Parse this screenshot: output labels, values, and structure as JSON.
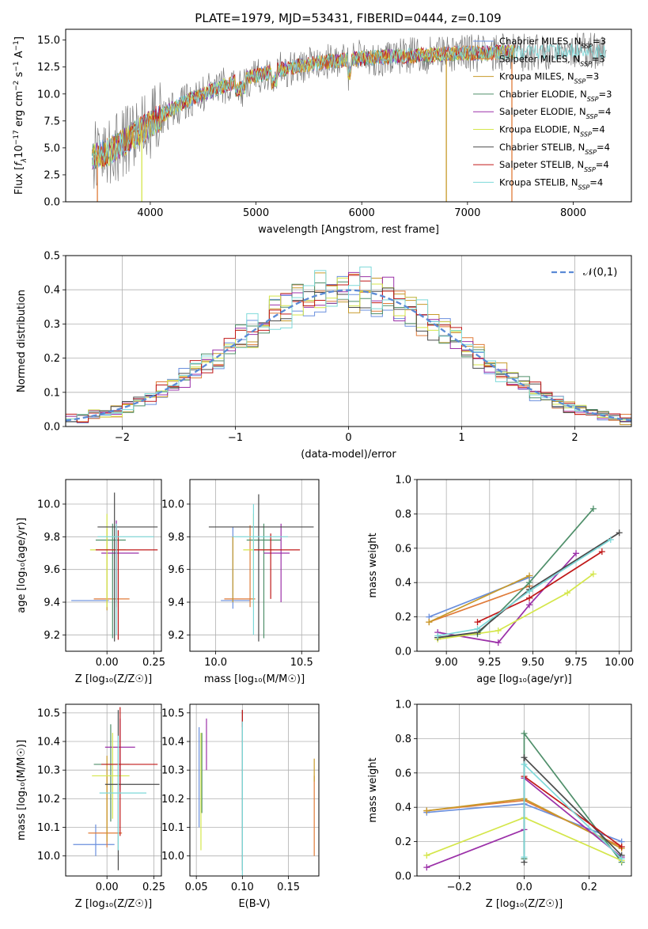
{
  "title": "PLATE=1979, MJD=53431, FIBERID=0444, z=0.109",
  "models": [
    {
      "name": "Chabrier MILES",
      "nssp": "3",
      "color": "#6a8fdd"
    },
    {
      "name": "Salpeter MILES",
      "nssp": "3",
      "color": "#e07b39"
    },
    {
      "name": "Kroupa MILES",
      "nssp": "3",
      "color": "#c89a2a"
    },
    {
      "name": "Chabrier ELODIE",
      "nssp": "3",
      "color": "#4f8f6a"
    },
    {
      "name": "Salpeter ELODIE",
      "nssp": "4",
      "color": "#9b30a8"
    },
    {
      "name": "Kroupa ELODIE",
      "nssp": "4",
      "color": "#d4e64a"
    },
    {
      "name": "Chabrier STELIB",
      "nssp": "4",
      "color": "#4a4a4a"
    },
    {
      "name": "Salpeter STELIB",
      "nssp": "4",
      "color": "#c01818"
    },
    {
      "name": "Kroupa STELIB",
      "nssp": "4",
      "color": "#7dd9d9"
    }
  ],
  "chart_data": [
    {
      "id": "spectrum",
      "type": "line",
      "xlabel": "wavelength [Angstrom, rest frame]",
      "ylabel_parts": [
        "Flux [",
        "f",
        "λ",
        "10",
        "−17",
        " erg cm",
        "−2",
        " s",
        "−1",
        " A",
        "−1",
        "]"
      ],
      "xlim": [
        3200,
        8550
      ],
      "ylim": [
        0,
        16
      ],
      "xticks": [
        4000,
        5000,
        6000,
        7000,
        8000
      ],
      "yticks": [
        "0.0",
        "2.5",
        "5.0",
        "7.5",
        "10.0",
        "12.5",
        "15.0"
      ],
      "ytick_values": [
        0,
        2.5,
        5,
        7.5,
        10,
        12.5,
        15
      ],
      "continuum_x": [
        3450,
        3600,
        3800,
        4000,
        4200,
        4400,
        4600,
        4800,
        5000,
        5200,
        5400,
        5600,
        5800,
        6000,
        6200,
        6400,
        6600,
        6800,
        7000,
        7200,
        7400,
        7600,
        7800,
        8000,
        8200,
        8320
      ],
      "continuum_y": [
        4.2,
        4.6,
        5.8,
        7.2,
        8.6,
        9.6,
        10.4,
        11.1,
        11.7,
        12.2,
        12.6,
        12.9,
        13.1,
        13.3,
        13.4,
        13.5,
        13.6,
        13.7,
        13.8,
        13.8,
        13.9,
        13.8,
        13.9,
        14.0,
        13.9,
        13.8
      ],
      "data_gaps_x": [
        3500,
        3920,
        6800,
        7420
      ],
      "grid": false,
      "legend_position": "upper right"
    },
    {
      "id": "residuals",
      "type": "step",
      "xlabel": "(data-model)/error",
      "ylabel": "Normed distribution",
      "xlim": [
        -2.5,
        2.5
      ],
      "ylim": [
        0,
        0.5
      ],
      "xticks": [
        "−2",
        "−1",
        "0",
        "1",
        "2"
      ],
      "xtick_values": [
        -2,
        -1,
        0,
        1,
        2
      ],
      "yticks": [
        "0.0",
        "0.1",
        "0.2",
        "0.3",
        "0.4",
        "0.5"
      ],
      "ytick_values": [
        0,
        0.1,
        0.2,
        0.3,
        0.4,
        0.5
      ],
      "reference_label": "𝒩(0,1)",
      "reference_color": "#5b8ad6",
      "grid": true,
      "legend_position": "upper right"
    },
    {
      "id": "age_vs_Z",
      "type": "errorbar",
      "xlabel": "Z [log₁₀(Z/Z☉)]",
      "ylabel": "age  [log₁₀(age/yr)]",
      "xlim": [
        -0.22,
        0.29
      ],
      "ylim": [
        9.1,
        10.15
      ],
      "xticks": [
        "0.00",
        "0.25"
      ],
      "xtick_values": [
        0,
        0.25
      ],
      "yticks": [
        "9.2",
        "9.4",
        "9.6",
        "9.8",
        "10.0"
      ],
      "ytick_values": [
        9.2,
        9.4,
        9.6,
        9.8,
        10.0
      ],
      "grid": true,
      "points": [
        {
          "x": 0.0,
          "xerr": [
            0.17,
            0.01
          ],
          "y": 9.41,
          "yerr": [
            0.0,
            0.0
          ]
        },
        {
          "x": 0.02,
          "xerr": [
            0.12,
            0.09
          ],
          "y": 9.42,
          "yerr": [
            0.05,
            0.5
          ]
        },
        {
          "x": 0.0,
          "xerr": [
            0.12,
            0.11
          ],
          "y": 9.78,
          "yerr": [
            0.4,
            0.1
          ]
        },
        {
          "x": 0.03,
          "xerr": [
            0.1,
            0.13
          ],
          "y": 9.7,
          "yerr": [
            0.55,
            0.15
          ]
        },
        {
          "x": 0.02,
          "xerr": [
            0.1,
            0.12
          ],
          "y": 9.72,
          "yerr": [
            0.3,
            0.2
          ]
        },
        {
          "x": 0.04,
          "xerr": [
            0.08,
            0.23
          ],
          "y": 9.86,
          "yerr": [
            0.7,
            0.2
          ]
        },
        {
          "x": 0.06,
          "xerr": [
            0.1,
            0.23
          ],
          "y": 9.72,
          "yerr": [
            0.5,
            0.1
          ]
        },
        {
          "x": 0.05,
          "xerr": [
            0.12,
            0.2
          ],
          "y": 9.8,
          "yerr": [
            0.6,
            0.08
          ]
        }
      ]
    },
    {
      "id": "age_vs_mass",
      "type": "errorbar",
      "xlabel": "mass [log₁₀(M/M☉)]",
      "ylabel": "",
      "xlim": [
        9.85,
        10.6
      ],
      "ylim": [
        9.1,
        10.15
      ],
      "xticks": [
        "10.0",
        "10.5"
      ],
      "xtick_values": [
        10.0,
        10.5
      ],
      "yticks": [
        "9.2",
        "9.4",
        "9.6",
        "9.8",
        "10.0"
      ],
      "ytick_values": [
        9.2,
        9.4,
        9.6,
        9.8,
        10.0
      ],
      "grid": true
    },
    {
      "id": "weight_vs_age",
      "type": "line",
      "xlabel": "age  [log₁₀(age/yr)]",
      "ylabel": "mass weight",
      "xlim": [
        8.83,
        10.07
      ],
      "ylim": [
        0,
        1
      ],
      "xticks": [
        "9.00",
        "9.25",
        "9.50",
        "9.75",
        "10.00"
      ],
      "xtick_values": [
        9.0,
        9.25,
        9.5,
        9.75,
        10.0
      ],
      "yticks": [
        "0.0",
        "0.2",
        "0.4",
        "0.6",
        "0.8",
        "1.0"
      ],
      "ytick_values": [
        0,
        0.2,
        0.4,
        0.6,
        0.8,
        1.0
      ],
      "grid": true,
      "series": [
        {
          "x": [
            8.9,
            9.48
          ],
          "y": [
            0.2,
            0.43
          ]
        },
        {
          "x": [
            8.9,
            9.48
          ],
          "y": [
            0.17,
            0.38
          ]
        },
        {
          "x": [
            8.9,
            9.48
          ],
          "y": [
            0.17,
            0.44
          ]
        },
        {
          "x": [
            8.95,
            9.18,
            9.48,
            9.85
          ],
          "y": [
            0.08,
            0.1,
            0.4,
            0.83
          ]
        },
        {
          "x": [
            8.95,
            9.3,
            9.48,
            9.75
          ],
          "y": [
            0.11,
            0.05,
            0.27,
            0.57
          ]
        },
        {
          "x": [
            8.95,
            9.3,
            9.7,
            9.85
          ],
          "y": [
            0.07,
            0.12,
            0.34,
            0.45
          ]
        },
        {
          "x": [
            8.95,
            9.18,
            9.48,
            10.0
          ],
          "y": [
            0.08,
            0.11,
            0.36,
            0.69
          ]
        },
        {
          "x": [
            9.18,
            9.48,
            9.9
          ],
          "y": [
            0.17,
            0.31,
            0.58
          ]
        },
        {
          "x": [
            8.95,
            9.18,
            9.48,
            9.95
          ],
          "y": [
            0.09,
            0.13,
            0.35,
            0.65
          ]
        }
      ]
    },
    {
      "id": "mass_vs_Z",
      "type": "errorbar",
      "xlabel": "Z [log₁₀(Z/Z☉)]",
      "ylabel": "mass [log₁₀(M/M☉)]",
      "xlim": [
        -0.22,
        0.29
      ],
      "ylim": [
        9.93,
        10.53
      ],
      "xticks": [
        "0.00",
        "0.25"
      ],
      "xtick_values": [
        0,
        0.25
      ],
      "yticks": [
        "10.0",
        "10.1",
        "10.2",
        "10.3",
        "10.4",
        "10.5"
      ],
      "ytick_values": [
        10.0,
        10.1,
        10.2,
        10.3,
        10.4,
        10.5
      ],
      "grid": true
    },
    {
      "id": "mass_vs_ebv",
      "type": "errorbar",
      "xlabel": "E(B-V)",
      "ylabel": "",
      "xlim": [
        0.043,
        0.183
      ],
      "ylim": [
        9.93,
        10.53
      ],
      "xticks": [
        "0.05",
        "0.10",
        "0.15"
      ],
      "xtick_values": [
        0.05,
        0.1,
        0.15
      ],
      "yticks": [
        "10.0",
        "10.1",
        "10.2",
        "10.3",
        "10.4",
        "10.5"
      ],
      "ytick_values": [
        10.0,
        10.1,
        10.2,
        10.3,
        10.4,
        10.5
      ],
      "grid": true
    },
    {
      "id": "weight_vs_Z",
      "type": "line",
      "xlabel": "Z [log₁₀(Z/Z☉)]",
      "ylabel": "mass weight",
      "xlim": [
        -0.33,
        0.33
      ],
      "ylim": [
        0,
        1
      ],
      "xticks": [
        "−0.2",
        "0.0",
        "0.2"
      ],
      "xtick_values": [
        -0.2,
        0,
        0.2
      ],
      "yticks": [
        "0.0",
        "0.2",
        "0.4",
        "0.6",
        "0.8",
        "1.0"
      ],
      "ytick_values": [
        0,
        0.2,
        0.4,
        0.6,
        0.8,
        1.0
      ],
      "grid": true,
      "series": [
        {
          "x": [
            -0.3,
            0.0,
            0.3
          ],
          "y": [
            0.37,
            0.42,
            0.2
          ]
        },
        {
          "x": [
            -0.3,
            0.0,
            0.3
          ],
          "y": [
            0.38,
            0.44,
            0.17
          ]
        },
        {
          "x": [
            -0.3,
            0.0,
            0.3
          ],
          "y": [
            0.38,
            0.45,
            0.16
          ]
        },
        {
          "x": [
            0.0,
            0.0,
            0.3
          ],
          "y": [
            0.1,
            0.83,
            0.08
          ]
        },
        {
          "x": [
            -0.3,
            0.0,
            0.0,
            0.3
          ],
          "y": [
            0.05,
            0.27,
            0.57,
            0.11
          ]
        },
        {
          "x": [
            -0.3,
            0.0,
            0.3
          ],
          "y": [
            0.12,
            0.34,
            0.09
          ]
        },
        {
          "x": [
            0.0,
            0.0,
            0.3
          ],
          "y": [
            0.08,
            0.69,
            0.12
          ]
        },
        {
          "x": [
            0.0,
            0.3
          ],
          "y": [
            0.58,
            0.17
          ]
        },
        {
          "x": [
            0.0,
            0.0,
            0.3
          ],
          "y": [
            0.11,
            0.65,
            0.1
          ]
        }
      ]
    }
  ]
}
